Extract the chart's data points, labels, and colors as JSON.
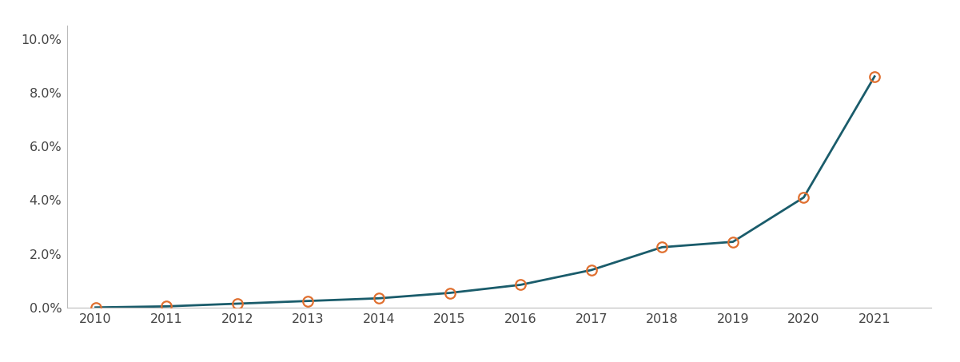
{
  "years": [
    2010,
    2011,
    2012,
    2013,
    2014,
    2015,
    2016,
    2017,
    2018,
    2019,
    2020,
    2021
  ],
  "values": [
    0.0001,
    0.0005,
    0.0015,
    0.0025,
    0.0035,
    0.0055,
    0.0085,
    0.014,
    0.0225,
    0.0245,
    0.041,
    0.086
  ],
  "line_color": "#1a5c6b",
  "marker_edge_color": "#e07030",
  "marker_face_color": "none",
  "background_color": "#ffffff",
  "ylim": [
    0.0,
    0.105
  ],
  "yticks": [
    0.0,
    0.02,
    0.04,
    0.06,
    0.08,
    0.1
  ],
  "ytick_labels": [
    "0.0%",
    "2.0%",
    "4.0%",
    "6.0%",
    "8.0%",
    "10.0%"
  ],
  "line_width": 2.0,
  "marker_size": 9,
  "marker_linewidth": 1.6,
  "tick_label_fontsize": 11.5,
  "tick_label_color": "#444444",
  "spine_color": "#bbbbbb",
  "xlim_left": 2009.6,
  "xlim_right": 2021.8
}
